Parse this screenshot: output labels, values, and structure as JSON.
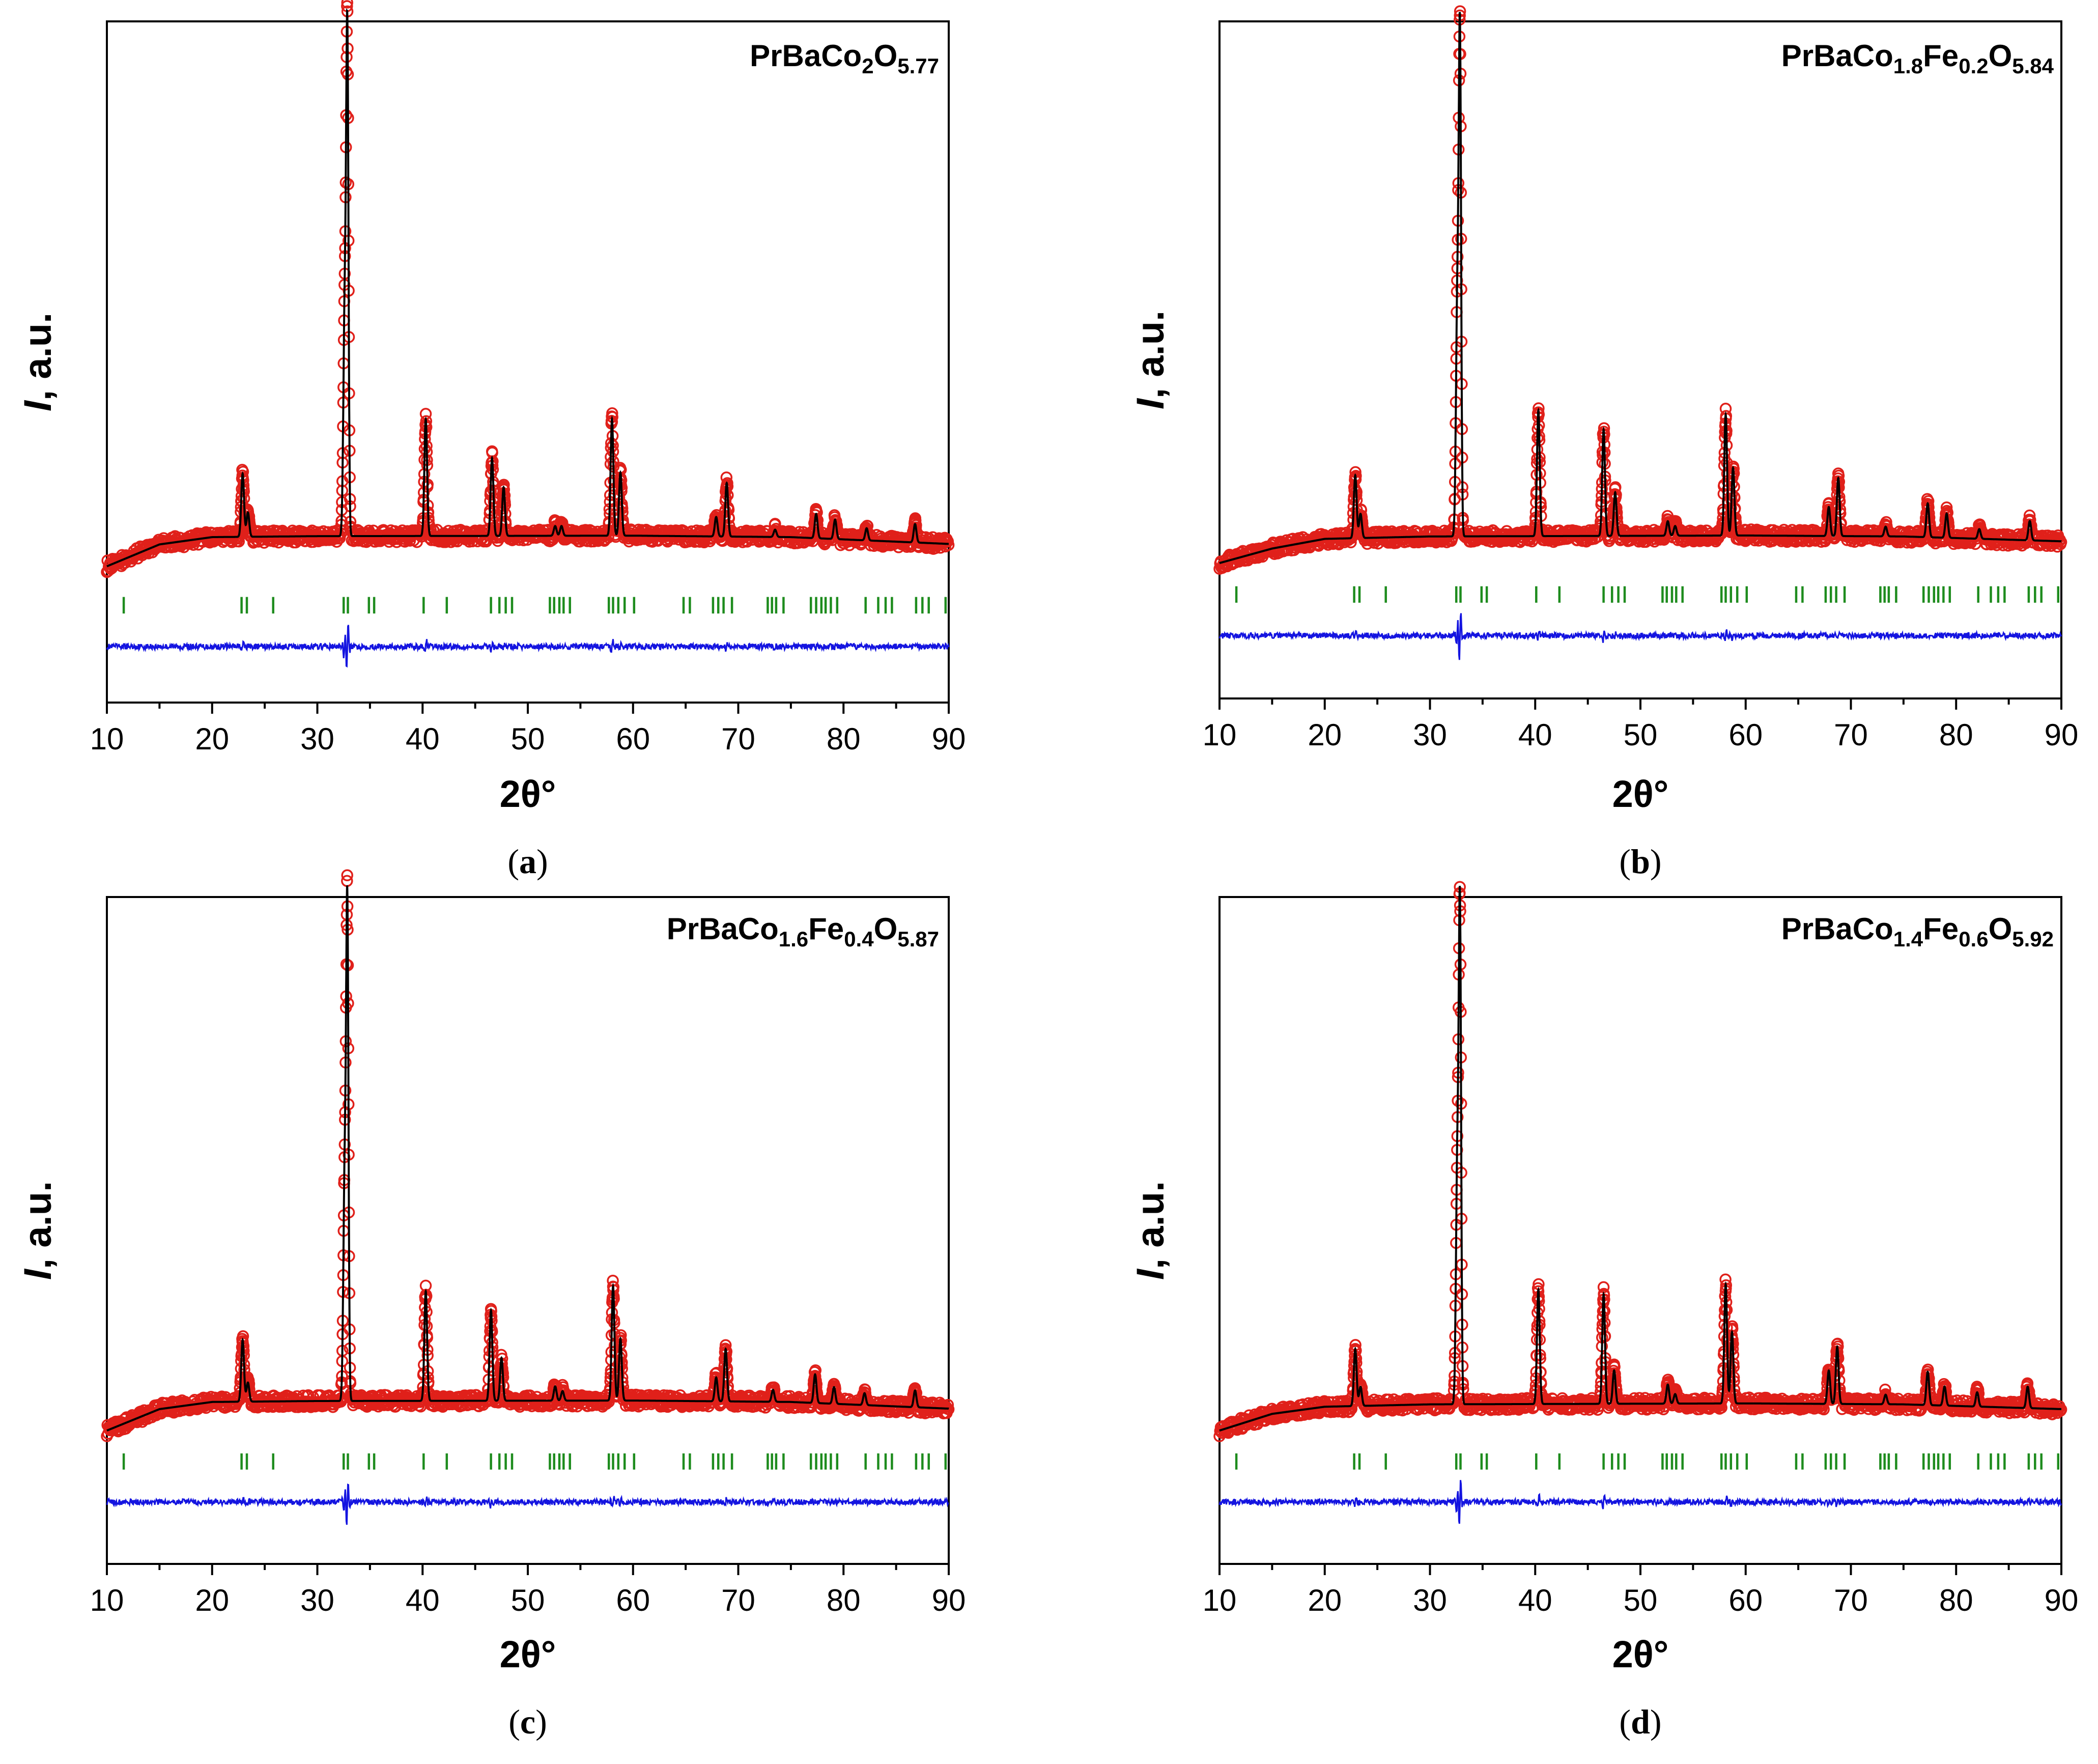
{
  "figure": {
    "x_axis_title": "2θ°",
    "y_axis_title_italic": "I",
    "y_axis_title_rest": ", a.u.",
    "x_ticks": [
      10,
      20,
      30,
      40,
      50,
      60,
      70,
      80,
      90
    ]
  },
  "colors": {
    "observed": "#e0201a",
    "calculated": "#000000",
    "bragg": "#1e8c1e",
    "difference": "#1414e0"
  },
  "chart_data": [
    {
      "type": "scatter",
      "panel_label": "a",
      "title_parts": [
        {
          "text": "PrBaCo",
          "sub": false
        },
        {
          "text": "2",
          "sub": true
        },
        {
          "text": "O",
          "sub": false
        },
        {
          "text": "5.77",
          "sub": true
        }
      ],
      "xlabel": "2θ°",
      "ylabel": "I, a.u.",
      "xlim": [
        10,
        90
      ],
      "ylim": [
        -0.28,
        1.12
      ],
      "series": [
        {
          "name": "observed",
          "style": "open-circles"
        },
        {
          "name": "calculated",
          "style": "line"
        },
        {
          "name": "bragg-positions",
          "style": "ticks"
        },
        {
          "name": "difference",
          "style": "line"
        }
      ],
      "background": [
        [
          10,
          0.0
        ],
        [
          15,
          0.045
        ],
        [
          20,
          0.06
        ],
        [
          30,
          0.062
        ],
        [
          60,
          0.063
        ],
        [
          75,
          0.06
        ],
        [
          90,
          0.046
        ]
      ],
      "peaks": [
        {
          "x": 22.9,
          "h": 0.13
        },
        {
          "x": 23.4,
          "h": 0.05
        },
        {
          "x": 32.6,
          "h": 0.46
        },
        {
          "x": 32.85,
          "h": 1.0
        },
        {
          "x": 40.3,
          "h": 0.24
        },
        {
          "x": 46.6,
          "h": 0.16
        },
        {
          "x": 47.7,
          "h": 0.1
        },
        {
          "x": 52.6,
          "h": 0.02
        },
        {
          "x": 53.2,
          "h": 0.02
        },
        {
          "x": 58.0,
          "h": 0.24
        },
        {
          "x": 58.8,
          "h": 0.13
        },
        {
          "x": 67.9,
          "h": 0.04
        },
        {
          "x": 68.9,
          "h": 0.11
        },
        {
          "x": 73.5,
          "h": 0.015
        },
        {
          "x": 77.4,
          "h": 0.05
        },
        {
          "x": 79.2,
          "h": 0.04
        },
        {
          "x": 82.2,
          "h": 0.025
        },
        {
          "x": 86.8,
          "h": 0.038
        }
      ],
      "bragg_positions": [
        11.6,
        22.8,
        23.3,
        25.8,
        32.5,
        32.9,
        34.9,
        35.4,
        40.1,
        42.3,
        46.5,
        47.3,
        47.9,
        48.5,
        52.1,
        52.5,
        53.0,
        53.4,
        54.0,
        57.7,
        58.1,
        58.6,
        59.2,
        60.1,
        64.8,
        65.4,
        67.6,
        68.1,
        68.6,
        69.4,
        72.8,
        73.2,
        73.6,
        74.3,
        76.9,
        77.4,
        77.9,
        78.3,
        78.8,
        79.4,
        82.1,
        83.3,
        84.0,
        84.6,
        86.9,
        87.5,
        88.1,
        89.7
      ],
      "noise_amplitude": 0.012,
      "difference_baseline": -0.165
    },
    {
      "type": "scatter",
      "panel_label": "b",
      "title_parts": [
        {
          "text": "PrBaCo",
          "sub": false
        },
        {
          "text": "1.8",
          "sub": true
        },
        {
          "text": "Fe",
          "sub": false
        },
        {
          "text": "0.2",
          "sub": true
        },
        {
          "text": "O",
          "sub": false
        },
        {
          "text": "5.84",
          "sub": true
        }
      ],
      "xlabel": "2θ°",
      "ylabel": "I, a.u.",
      "xlim": [
        10,
        90
      ],
      "ylim": [
        -0.28,
        1.12
      ],
      "series": [
        {
          "name": "observed",
          "style": "open-circles"
        },
        {
          "name": "calculated",
          "style": "line"
        },
        {
          "name": "bragg-positions",
          "style": "ticks"
        },
        {
          "name": "difference",
          "style": "line"
        }
      ],
      "background": [
        [
          10,
          0.0
        ],
        [
          15,
          0.03
        ],
        [
          20,
          0.05
        ],
        [
          30,
          0.055
        ],
        [
          60,
          0.057
        ],
        [
          75,
          0.055
        ],
        [
          90,
          0.045
        ]
      ],
      "peaks": [
        {
          "x": 22.9,
          "h": 0.13
        },
        {
          "x": 23.4,
          "h": 0.05
        },
        {
          "x": 32.6,
          "h": 0.48
        },
        {
          "x": 32.85,
          "h": 1.0
        },
        {
          "x": 40.3,
          "h": 0.26
        },
        {
          "x": 46.5,
          "h": 0.22
        },
        {
          "x": 47.6,
          "h": 0.09
        },
        {
          "x": 52.6,
          "h": 0.03
        },
        {
          "x": 53.3,
          "h": 0.02
        },
        {
          "x": 58.1,
          "h": 0.25
        },
        {
          "x": 58.8,
          "h": 0.14
        },
        {
          "x": 67.9,
          "h": 0.06
        },
        {
          "x": 68.8,
          "h": 0.12
        },
        {
          "x": 73.3,
          "h": 0.02
        },
        {
          "x": 77.3,
          "h": 0.07
        },
        {
          "x": 79.1,
          "h": 0.05
        },
        {
          "x": 82.2,
          "h": 0.02
        },
        {
          "x": 87.0,
          "h": 0.04
        }
      ],
      "bragg_positions": [
        11.6,
        22.8,
        23.3,
        25.8,
        32.5,
        32.9,
        34.9,
        35.4,
        40.1,
        42.3,
        46.5,
        47.3,
        47.9,
        48.5,
        52.1,
        52.5,
        53.0,
        53.4,
        54.0,
        57.7,
        58.1,
        58.6,
        59.2,
        60.1,
        64.8,
        65.4,
        67.6,
        68.1,
        68.6,
        69.4,
        72.8,
        73.2,
        73.6,
        74.3,
        76.9,
        77.4,
        77.9,
        78.3,
        78.8,
        79.4,
        82.1,
        83.3,
        84.0,
        84.6,
        86.9,
        87.5,
        88.1,
        89.7
      ],
      "noise_amplitude": 0.012,
      "difference_baseline": -0.15
    },
    {
      "type": "scatter",
      "panel_label": "c",
      "title_parts": [
        {
          "text": "PrBaCo",
          "sub": false
        },
        {
          "text": "1.6",
          "sub": true
        },
        {
          "text": "Fe",
          "sub": false
        },
        {
          "text": "0.4",
          "sub": true
        },
        {
          "text": "O",
          "sub": false
        },
        {
          "text": "5.87",
          "sub": true
        }
      ],
      "xlabel": "2θ°",
      "ylabel": "I, a.u.",
      "xlim": [
        10,
        90
      ],
      "ylim": [
        -0.28,
        1.12
      ],
      "series": [
        {
          "name": "observed",
          "style": "open-circles"
        },
        {
          "name": "calculated",
          "style": "line"
        },
        {
          "name": "bragg-positions",
          "style": "ticks"
        },
        {
          "name": "difference",
          "style": "line"
        }
      ],
      "background": [
        [
          10,
          0.0
        ],
        [
          15,
          0.045
        ],
        [
          20,
          0.06
        ],
        [
          30,
          0.062
        ],
        [
          60,
          0.063
        ],
        [
          75,
          0.06
        ],
        [
          90,
          0.046
        ]
      ],
      "peaks": [
        {
          "x": 22.9,
          "h": 0.13
        },
        {
          "x": 23.4,
          "h": 0.04
        },
        {
          "x": 32.6,
          "h": 0.47
        },
        {
          "x": 32.85,
          "h": 1.0
        },
        {
          "x": 40.3,
          "h": 0.23
        },
        {
          "x": 46.5,
          "h": 0.19
        },
        {
          "x": 47.5,
          "h": 0.09
        },
        {
          "x": 52.6,
          "h": 0.03
        },
        {
          "x": 53.3,
          "h": 0.02
        },
        {
          "x": 58.1,
          "h": 0.24
        },
        {
          "x": 58.8,
          "h": 0.13
        },
        {
          "x": 67.9,
          "h": 0.05
        },
        {
          "x": 68.8,
          "h": 0.11
        },
        {
          "x": 73.3,
          "h": 0.025
        },
        {
          "x": 77.3,
          "h": 0.06
        },
        {
          "x": 79.1,
          "h": 0.035
        },
        {
          "x": 82.0,
          "h": 0.025
        },
        {
          "x": 86.8,
          "h": 0.035
        }
      ],
      "bragg_positions": [
        11.6,
        22.8,
        23.3,
        25.8,
        32.5,
        32.9,
        34.9,
        35.4,
        40.1,
        42.3,
        46.5,
        47.3,
        47.9,
        48.5,
        52.1,
        52.5,
        53.0,
        53.4,
        54.0,
        57.7,
        58.1,
        58.6,
        59.2,
        60.1,
        64.8,
        65.4,
        67.6,
        68.1,
        68.6,
        69.4,
        72.8,
        73.2,
        73.6,
        74.3,
        76.9,
        77.4,
        77.9,
        78.3,
        78.8,
        79.4,
        82.1,
        83.3,
        84.0,
        84.6,
        86.9,
        87.5,
        88.1,
        89.7
      ],
      "noise_amplitude": 0.012,
      "difference_baseline": -0.15
    },
    {
      "type": "scatter",
      "panel_label": "d",
      "title_parts": [
        {
          "text": "PrBaCo",
          "sub": false
        },
        {
          "text": "1.4",
          "sub": true
        },
        {
          "text": "Fe",
          "sub": false
        },
        {
          "text": "0.6",
          "sub": true
        },
        {
          "text": "O",
          "sub": false
        },
        {
          "text": "5.92",
          "sub": true
        }
      ],
      "xlabel": "2θ°",
      "ylabel": "I, a.u.",
      "xlim": [
        10,
        90
      ],
      "ylim": [
        -0.28,
        1.12
      ],
      "series": [
        {
          "name": "observed",
          "style": "open-circles"
        },
        {
          "name": "calculated",
          "style": "line"
        },
        {
          "name": "bragg-positions",
          "style": "ticks"
        },
        {
          "name": "difference",
          "style": "line"
        }
      ],
      "background": [
        [
          10,
          0.0
        ],
        [
          15,
          0.035
        ],
        [
          20,
          0.05
        ],
        [
          30,
          0.055
        ],
        [
          60,
          0.057
        ],
        [
          75,
          0.055
        ],
        [
          90,
          0.045
        ]
      ],
      "peaks": [
        {
          "x": 22.9,
          "h": 0.12
        },
        {
          "x": 23.4,
          "h": 0.04
        },
        {
          "x": 32.6,
          "h": 0.5
        },
        {
          "x": 32.85,
          "h": 1.0
        },
        {
          "x": 40.3,
          "h": 0.24
        },
        {
          "x": 46.5,
          "h": 0.23
        },
        {
          "x": 47.5,
          "h": 0.07
        },
        {
          "x": 52.6,
          "h": 0.04
        },
        {
          "x": 53.3,
          "h": 0.02
        },
        {
          "x": 58.1,
          "h": 0.25
        },
        {
          "x": 58.7,
          "h": 0.15
        },
        {
          "x": 67.9,
          "h": 0.07
        },
        {
          "x": 68.7,
          "h": 0.12
        },
        {
          "x": 73.3,
          "h": 0.02
        },
        {
          "x": 77.3,
          "h": 0.07
        },
        {
          "x": 78.9,
          "h": 0.04
        },
        {
          "x": 82.0,
          "h": 0.03
        },
        {
          "x": 86.8,
          "h": 0.045
        }
      ],
      "bragg_positions": [
        11.6,
        22.8,
        23.3,
        25.8,
        32.5,
        32.9,
        34.9,
        35.4,
        40.1,
        42.3,
        46.5,
        47.3,
        47.9,
        48.5,
        52.1,
        52.5,
        53.0,
        53.4,
        54.0,
        57.7,
        58.1,
        58.6,
        59.2,
        60.1,
        64.8,
        65.4,
        67.6,
        68.1,
        68.6,
        69.4,
        72.8,
        73.2,
        73.6,
        74.3,
        76.9,
        77.4,
        77.9,
        78.3,
        78.8,
        79.4,
        82.1,
        83.3,
        84.0,
        84.6,
        86.9,
        87.5,
        88.1,
        89.7
      ],
      "noise_amplitude": 0.012,
      "difference_baseline": -0.15
    }
  ]
}
